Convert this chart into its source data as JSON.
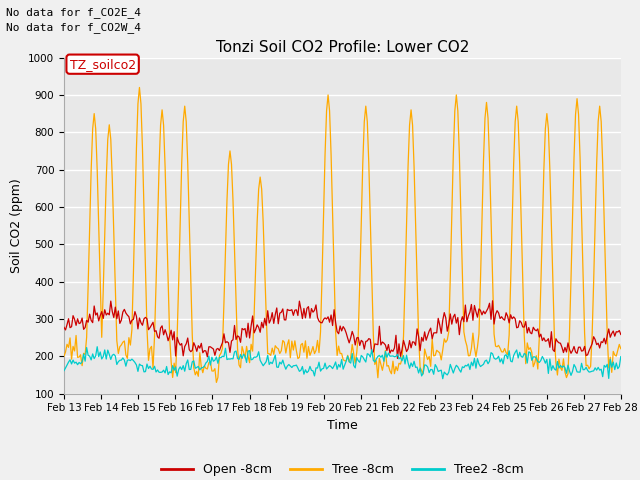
{
  "title": "Tonzi Soil CO2 Profile: Lower CO2",
  "xlabel": "Time",
  "ylabel": "Soil CO2 (ppm)",
  "ylim": [
    100,
    1000
  ],
  "annotation_lines": [
    "No data for f_CO2E_4",
    "No data for f_CO2W_4"
  ],
  "legend_label_box": "TZ_soilco2",
  "legend_entries": [
    "Open -8cm",
    "Tree -8cm",
    "Tree2 -8cm"
  ],
  "legend_colors": [
    "#cc0000",
    "#ffaa00",
    "#00cccc"
  ],
  "bg_color": "#f0f0f0",
  "plot_bg_color": "#e8e8e8",
  "grid_color": "#ffffff",
  "n_points": 370,
  "title_fontsize": 11,
  "annot_fontsize": 8,
  "tick_fontsize": 7.5,
  "label_fontsize": 9
}
